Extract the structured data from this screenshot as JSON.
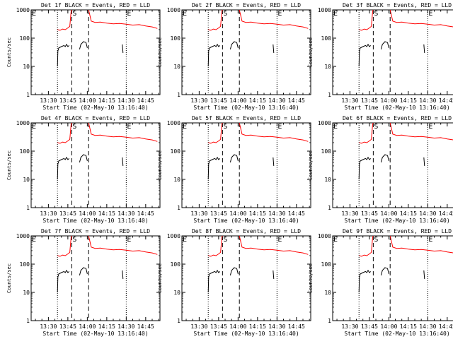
{
  "panel_titles": [
    "Det 1f BLACK = Events, RED = LLD",
    "Det 2f BLACK = Events, RED = LLD",
    "Det 3f BLACK = Events, RED = LLD",
    "Det 4f BLACK = Events, RED = LLD",
    "Det 5f BLACK = Events, RED = LLD",
    "Det 6f BLACK = Events, RED = LLD",
    "Det 7f BLACK = Events, RED = LLD",
    "Det 8f BLACK = Events, RED = LLD",
    "Det 9f BLACK = Events, RED = LLD"
  ],
  "colors": {
    "events": "#000000",
    "lld": "#ff0000",
    "axes": "#000000",
    "background": "#ffffff"
  },
  "chart_data": {
    "type": "line",
    "layout": "3x3 small multiples",
    "xlabel": "Start Time (02-May-10 13:16:40)",
    "ylabel": "Counts/sec",
    "x_ticks": [
      "13:30",
      "13:45",
      "14:00",
      "14:15",
      "14:30",
      "14:45"
    ],
    "x_tick_minutes": [
      0,
      15,
      30,
      45,
      60,
      75
    ],
    "xlim_minutes": [
      -13.3,
      86
    ],
    "y_scale": "log",
    "y_ticks": [
      "1",
      "10",
      "100",
      "1000"
    ],
    "y_tick_values": [
      1,
      10,
      100,
      1000
    ],
    "ylim": [
      1,
      1000
    ],
    "dotted_markers_minutes": [
      7,
      60
    ],
    "dashed_markers_minutes": [
      18,
      31
    ],
    "marker_labels": [
      {
        "text": "E",
        "at_minutes": -13.3
      },
      {
        "text": "S",
        "at_minutes": 18
      },
      {
        "text": "E",
        "at_minutes": 60
      }
    ],
    "series": [
      {
        "name": "LLD",
        "color": "#ff0000",
        "segments": [
          {
            "x": [
              7,
              9,
              11,
              13,
              15,
              16.5,
              17.5,
              18
            ],
            "y": [
              200,
              190,
              210,
              200,
              230,
              260,
              900,
              1000
            ]
          },
          {
            "x": [
              31,
              33,
              36,
              40,
              45,
              50,
              55,
              60,
              65,
              70,
              75,
              80,
              84
            ],
            "y": [
              1000,
              400,
              360,
              370,
              340,
              320,
              330,
              310,
              290,
              300,
              270,
              250,
              220
            ]
          }
        ]
      },
      {
        "name": "Events",
        "color": "#000000",
        "segments": [
          {
            "x": [
              7,
              7.3,
              8,
              10,
              12,
              13,
              14,
              15,
              16
            ],
            "y": [
              10,
              35,
              45,
              50,
              55,
              50,
              60,
              50,
              55
            ]
          },
          {
            "x": [
              24,
              25,
              27,
              29,
              30
            ],
            "y": [
              40,
              60,
              75,
              70,
              45
            ]
          },
          {
            "x": [
              57,
              57.5
            ],
            "y": [
              60,
              30
            ]
          }
        ]
      }
    ]
  }
}
